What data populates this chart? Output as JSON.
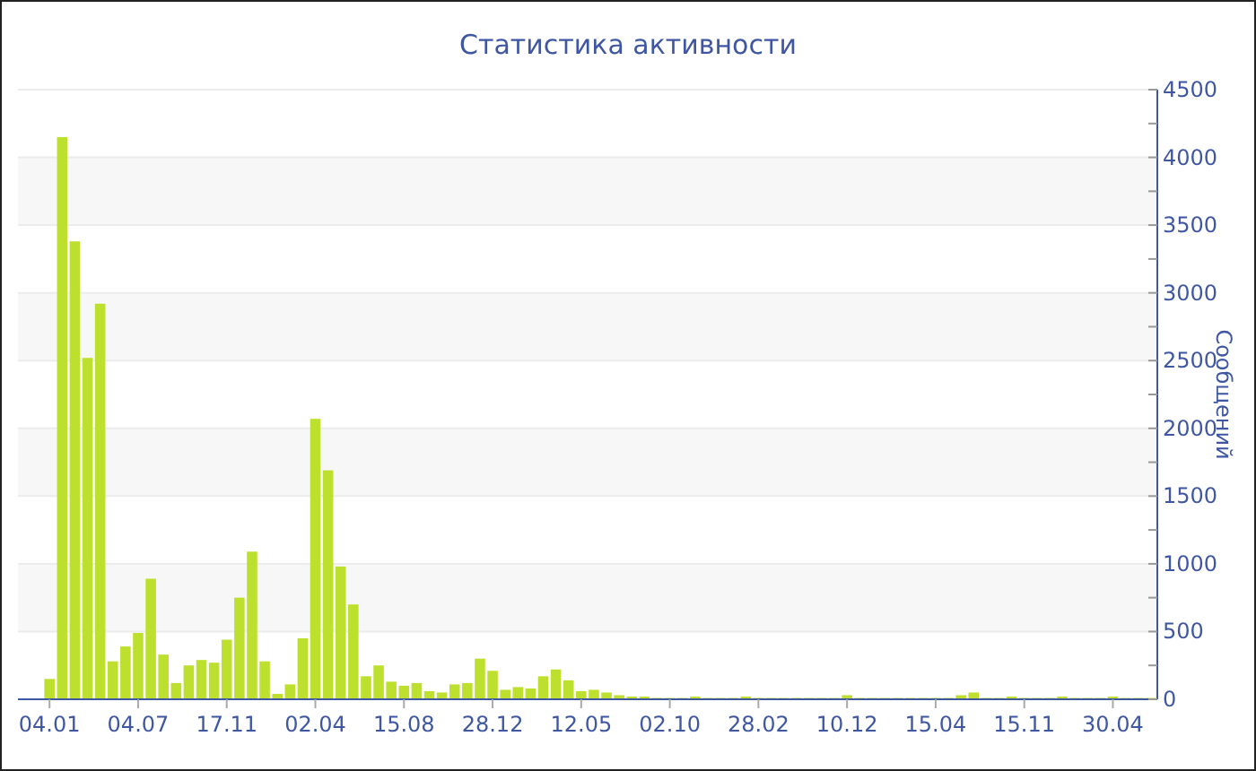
{
  "chart_data": {
    "type": "bar",
    "title": "Статистика активности",
    "ylabel": "Сообщений",
    "color": "#bde02f",
    "grid": "y",
    "categories": [
      "04.01",
      null,
      null,
      null,
      null,
      null,
      null,
      "04.07",
      null,
      null,
      null,
      null,
      null,
      null,
      "17.11",
      null,
      null,
      null,
      null,
      null,
      null,
      "02.04",
      null,
      null,
      null,
      null,
      null,
      null,
      "15.08",
      null,
      null,
      null,
      null,
      null,
      null,
      "28.12",
      null,
      null,
      null,
      null,
      null,
      null,
      "12.05",
      null,
      null,
      null,
      null,
      null,
      null,
      "02.10",
      null,
      null,
      null,
      null,
      null,
      null,
      "28.02",
      null,
      null,
      null,
      null,
      null,
      null,
      "10.12",
      null,
      null,
      null,
      null,
      null,
      null,
      "15.04",
      null,
      null,
      null,
      null,
      null,
      null,
      "15.11",
      null,
      null,
      null,
      null,
      null,
      null,
      "30.04",
      null,
      null,
      null
    ],
    "values": [
      150,
      4150,
      3380,
      2520,
      2920,
      280,
      390,
      490,
      890,
      330,
      120,
      250,
      290,
      270,
      440,
      750,
      1090,
      280,
      40,
      110,
      450,
      2070,
      1690,
      980,
      700,
      170,
      250,
      130,
      100,
      120,
      60,
      50,
      110,
      120,
      300,
      210,
      70,
      90,
      80,
      170,
      220,
      140,
      60,
      70,
      50,
      30,
      20,
      20,
      10,
      10,
      10,
      20,
      10,
      10,
      10,
      20,
      10,
      10,
      10,
      10,
      10,
      10,
      10,
      30,
      10,
      10,
      10,
      10,
      10,
      10,
      10,
      10,
      30,
      50,
      10,
      10,
      20,
      10,
      10,
      10,
      20,
      10,
      10,
      10,
      20,
      10,
      10,
      10
    ],
    "ylim": [
      0,
      4500
    ],
    "yticks": [
      0,
      {
        "value": 250,
        "label": null
      },
      500,
      {
        "value": 750,
        "label": null
      },
      1000,
      {
        "value": 1250,
        "label": null
      },
      1500,
      {
        "value": 1750,
        "label": null
      },
      2000,
      {
        "value": 2250,
        "label": null
      },
      2500,
      {
        "value": 2750,
        "label": null
      },
      3000,
      {
        "value": 3250,
        "label": null
      },
      3500,
      {
        "value": 3750,
        "label": null
      },
      4000,
      {
        "value": 4250,
        "label": null
      },
      4500
    ]
  }
}
